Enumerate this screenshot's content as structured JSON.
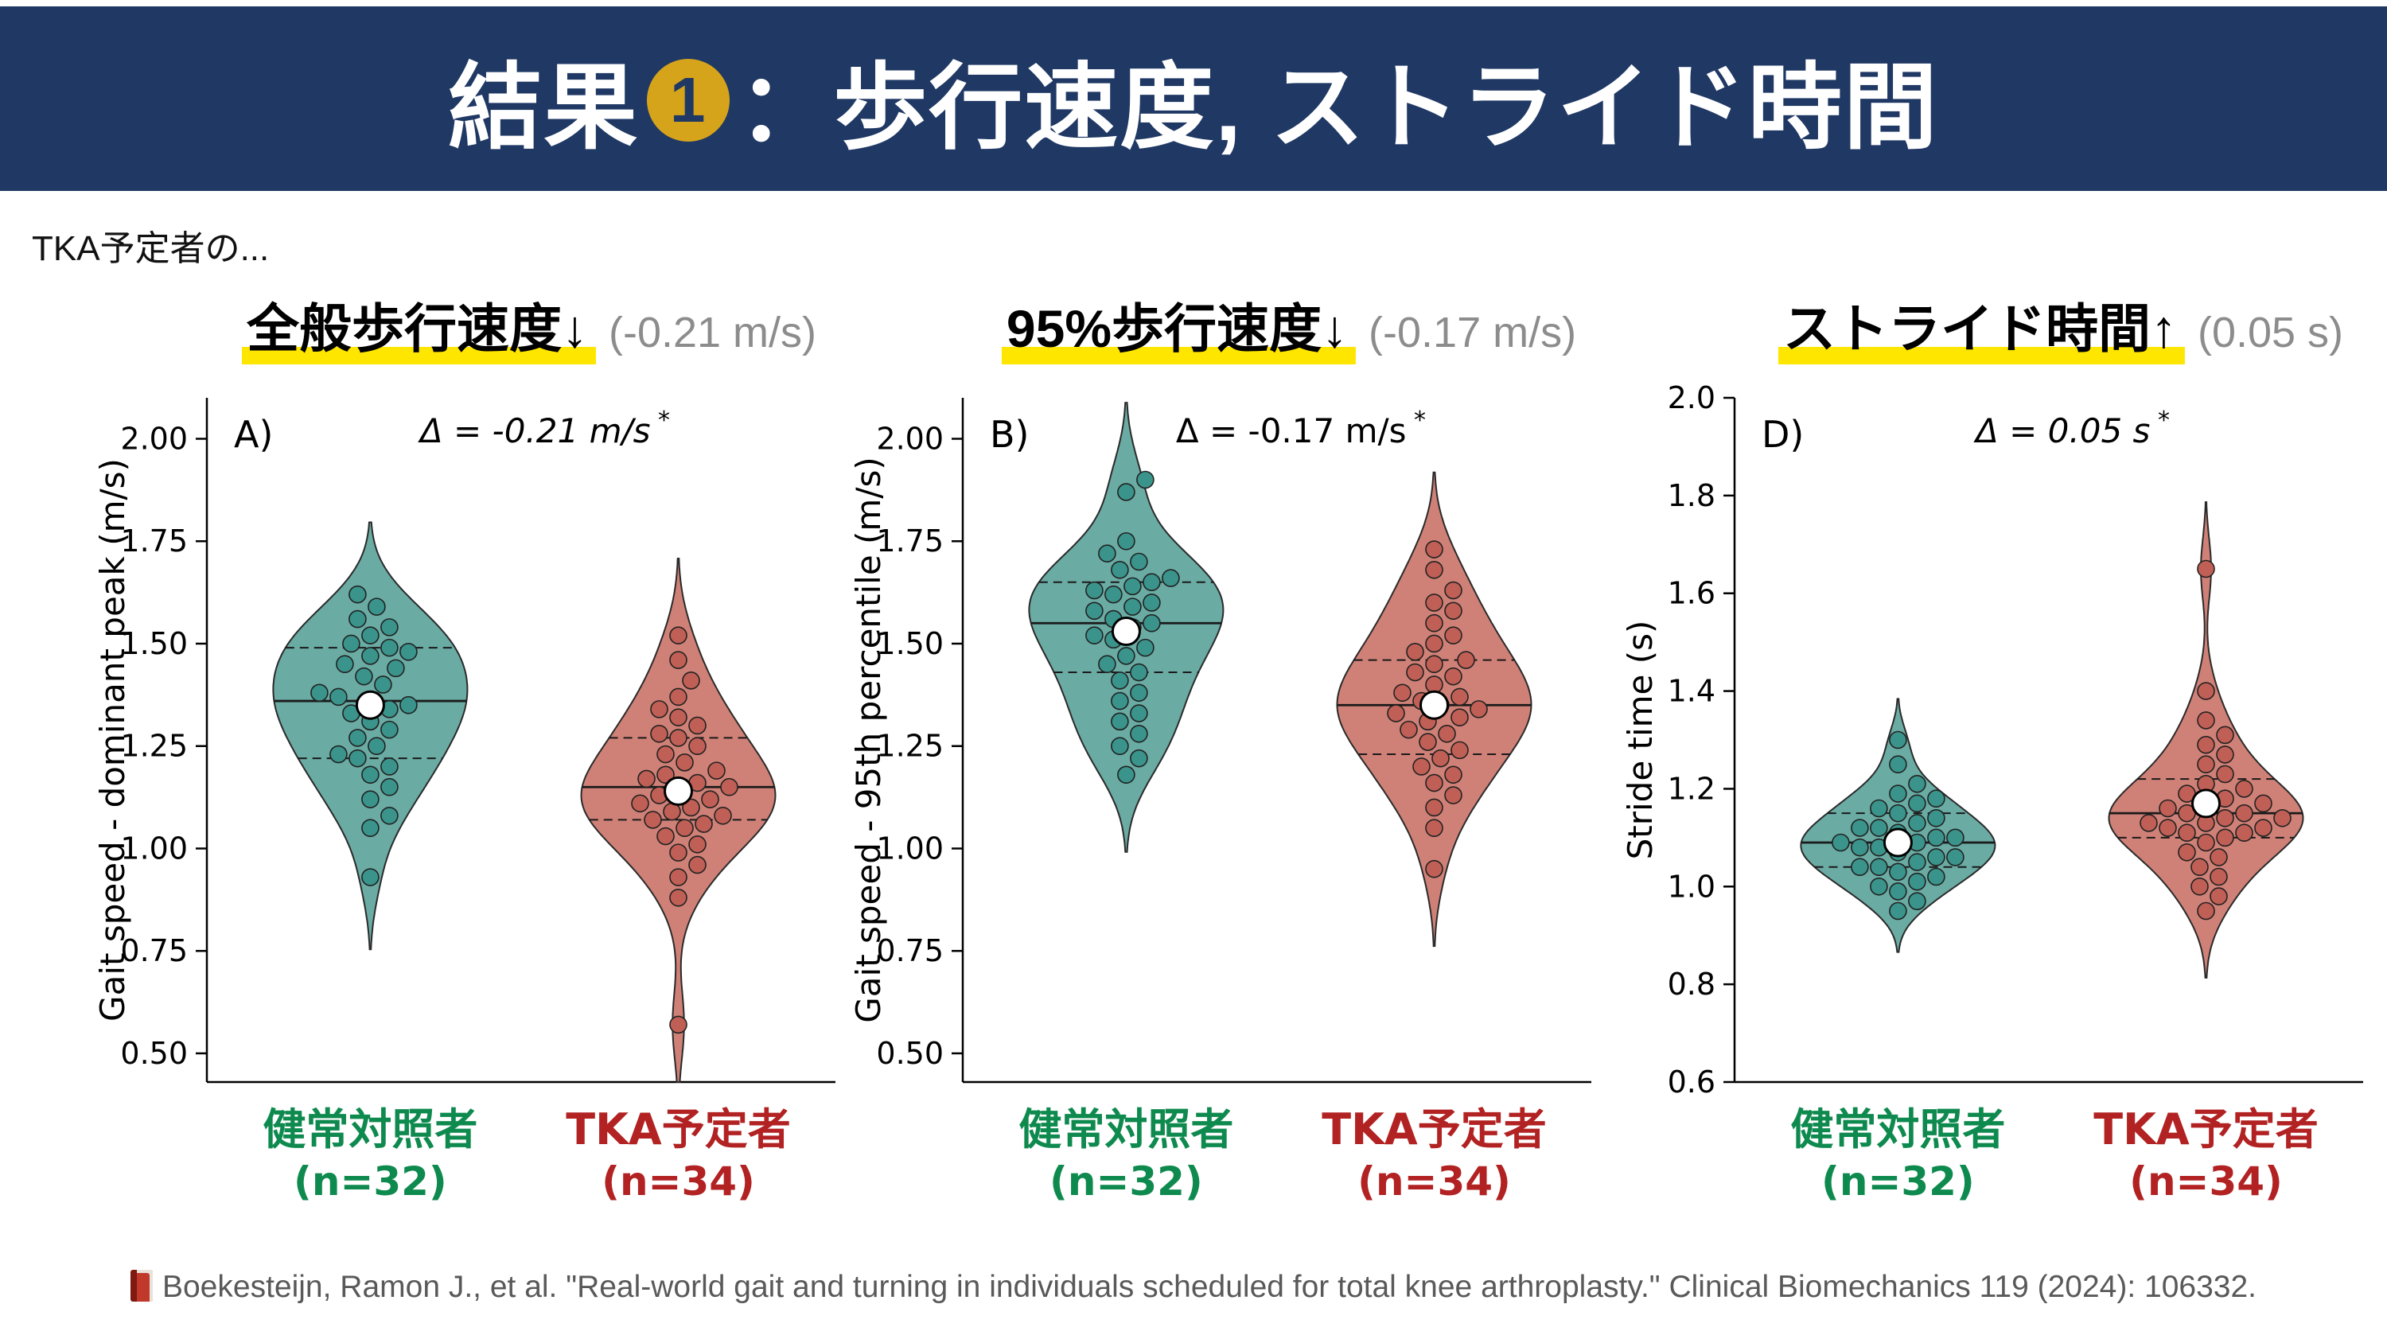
{
  "header": {
    "title_prefix": "結果",
    "badge": "1",
    "title_suffix": "：歩行速度, ストライド時間"
  },
  "subtitle": "TKA予定者の...",
  "citation": {
    "icon": "book-icon",
    "text": "Boekesteijn, Ramon J., et al. \"Real-world gait and turning in individuals scheduled for total knee arthroplasty.\" Clinical Biomechanics 119 (2024): 106332."
  },
  "colors": {
    "header_bg": "#1f3864",
    "badge_bg": "#d6a41b",
    "highlight_yellow": "#ffe600",
    "control_fill": "#6aaba3",
    "control_dot": "#3a948b",
    "control_label": "#0f8a4f",
    "tka_fill": "#cf8177",
    "tka_dot": "#c05f55",
    "tka_label": "#b22222",
    "note_gray": "#8c8c8c",
    "citation_gray": "#595959"
  },
  "chart_data": [
    {
      "type": "violin",
      "panel_letter": "A)",
      "heading": {
        "text": "全般歩行速度",
        "arrow": "↓",
        "delta_note": "(-0.21 m/s)"
      },
      "annotation": "Δ = -0.21 m/s",
      "annotation_star": "*",
      "annotation_italic": true,
      "ylabel": "Gait speed - dominant peak (m/s)",
      "ylim": [
        0.43,
        2.1
      ],
      "yticks": [
        0.5,
        0.75,
        1.0,
        1.25,
        1.5,
        1.75,
        2.0
      ],
      "ytick_labels": [
        "0.50",
        "0.75",
        "1.00",
        "1.25",
        "1.50",
        "1.75",
        "2.00"
      ],
      "groups": [
        {
          "name": "健常対照者",
          "n_label": "(n=32)",
          "n": 32,
          "fill": "#6aaba3",
          "dot_color": "#3a948b",
          "label_color": "#0f8a4f",
          "median": 1.36,
          "q1": 1.22,
          "q3": 1.49,
          "mean": 1.35,
          "points": [
            0.93,
            1.05,
            1.08,
            1.12,
            1.15,
            1.18,
            1.2,
            1.22,
            1.23,
            1.25,
            1.27,
            1.29,
            1.31,
            1.33,
            1.34,
            1.35,
            1.36,
            1.37,
            1.38,
            1.4,
            1.42,
            1.44,
            1.45,
            1.47,
            1.48,
            1.49,
            1.5,
            1.52,
            1.54,
            1.56,
            1.59,
            1.62
          ]
        },
        {
          "name": "TKA予定者",
          "n_label": "(n=34)",
          "n": 34,
          "fill": "#cf8177",
          "dot_color": "#c05f55",
          "label_color": "#b22222",
          "median": 1.15,
          "q1": 1.07,
          "q3": 1.27,
          "mean": 1.14,
          "points": [
            0.57,
            0.88,
            0.93,
            0.96,
            0.99,
            1.01,
            1.03,
            1.05,
            1.06,
            1.07,
            1.08,
            1.09,
            1.1,
            1.11,
            1.12,
            1.13,
            1.14,
            1.15,
            1.16,
            1.17,
            1.18,
            1.19,
            1.21,
            1.23,
            1.25,
            1.27,
            1.28,
            1.3,
            1.32,
            1.34,
            1.37,
            1.41,
            1.46,
            1.52
          ]
        }
      ]
    },
    {
      "type": "violin",
      "panel_letter": "B)",
      "heading": {
        "text": "95%歩行速度",
        "arrow": "↓",
        "delta_note": "(-0.17 m/s)"
      },
      "annotation": "Δ = -0.17 m/s",
      "annotation_star": "*",
      "annotation_italic": false,
      "ylabel": "Gait speed - 95th percentile (m/s)",
      "ylim": [
        0.43,
        2.1
      ],
      "yticks": [
        0.5,
        0.75,
        1.0,
        1.25,
        1.5,
        1.75,
        2.0
      ],
      "ytick_labels": [
        "0.50",
        "0.75",
        "1.00",
        "1.25",
        "1.50",
        "1.75",
        "2.00"
      ],
      "groups": [
        {
          "name": "健常対照者",
          "n_label": "(n=32)",
          "n": 32,
          "fill": "#6aaba3",
          "dot_color": "#3a948b",
          "label_color": "#0f8a4f",
          "median": 1.55,
          "q1": 1.43,
          "q3": 1.65,
          "mean": 1.53,
          "points": [
            1.18,
            1.22,
            1.25,
            1.28,
            1.31,
            1.33,
            1.36,
            1.38,
            1.41,
            1.43,
            1.45,
            1.47,
            1.49,
            1.51,
            1.52,
            1.54,
            1.55,
            1.56,
            1.58,
            1.59,
            1.6,
            1.62,
            1.63,
            1.64,
            1.65,
            1.66,
            1.68,
            1.7,
            1.72,
            1.75,
            1.87,
            1.9
          ]
        },
        {
          "name": "TKA予定者",
          "n_label": "(n=34)",
          "n": 34,
          "fill": "#cf8177",
          "dot_color": "#c05f55",
          "label_color": "#b22222",
          "median": 1.35,
          "q1": 1.23,
          "q3": 1.46,
          "mean": 1.35,
          "points": [
            0.95,
            1.05,
            1.1,
            1.13,
            1.16,
            1.18,
            1.2,
            1.22,
            1.24,
            1.26,
            1.28,
            1.29,
            1.31,
            1.32,
            1.33,
            1.34,
            1.35,
            1.36,
            1.37,
            1.38,
            1.4,
            1.42,
            1.43,
            1.45,
            1.46,
            1.48,
            1.5,
            1.52,
            1.55,
            1.58,
            1.6,
            1.63,
            1.68,
            1.73
          ]
        }
      ]
    },
    {
      "type": "violin",
      "panel_letter": "D)",
      "heading": {
        "text": "ストライド時間",
        "arrow": "↑",
        "delta_note": "(0.05 s)"
      },
      "annotation": "Δ = 0.05 s",
      "annotation_star": "*",
      "annotation_italic": true,
      "ylabel": "Stride time (s)",
      "ylim": [
        0.6,
        2.0
      ],
      "yticks": [
        0.6,
        0.8,
        1.0,
        1.2,
        1.4,
        1.6,
        1.8,
        2.0
      ],
      "ytick_labels": [
        "0.6",
        "0.8",
        "1.0",
        "1.2",
        "1.4",
        "1.6",
        "1.8",
        "2.0"
      ],
      "groups": [
        {
          "name": "健常対照者",
          "n_label": "(n=32)",
          "n": 32,
          "fill": "#6aaba3",
          "dot_color": "#3a948b",
          "label_color": "#0f8a4f",
          "median": 1.09,
          "q1": 1.04,
          "q3": 1.15,
          "mean": 1.09,
          "points": [
            0.95,
            0.97,
            0.99,
            1.0,
            1.01,
            1.02,
            1.03,
            1.04,
            1.04,
            1.05,
            1.06,
            1.06,
            1.07,
            1.08,
            1.08,
            1.09,
            1.09,
            1.1,
            1.1,
            1.11,
            1.12,
            1.12,
            1.13,
            1.14,
            1.15,
            1.16,
            1.17,
            1.18,
            1.19,
            1.21,
            1.25,
            1.3
          ]
        },
        {
          "name": "TKA予定者",
          "n_label": "(n=34)",
          "n": 34,
          "fill": "#cf8177",
          "dot_color": "#c05f55",
          "label_color": "#b22222",
          "median": 1.15,
          "q1": 1.1,
          "q3": 1.22,
          "mean": 1.17,
          "points": [
            0.95,
            0.98,
            1.0,
            1.02,
            1.04,
            1.06,
            1.07,
            1.09,
            1.1,
            1.11,
            1.11,
            1.12,
            1.12,
            1.13,
            1.13,
            1.14,
            1.14,
            1.15,
            1.15,
            1.16,
            1.17,
            1.17,
            1.18,
            1.19,
            1.2,
            1.21,
            1.23,
            1.25,
            1.27,
            1.29,
            1.31,
            1.34,
            1.4,
            1.65
          ]
        }
      ]
    }
  ]
}
